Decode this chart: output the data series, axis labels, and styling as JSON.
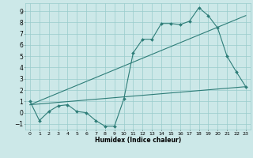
{
  "xlabel": "Humidex (Indice chaleur)",
  "xlim": [
    -0.5,
    23.5
  ],
  "ylim": [
    -1.5,
    9.7
  ],
  "yticks": [
    -1,
    0,
    1,
    2,
    3,
    4,
    5,
    6,
    7,
    8,
    9
  ],
  "xticks": [
    0,
    1,
    2,
    3,
    4,
    5,
    6,
    7,
    8,
    9,
    10,
    11,
    12,
    13,
    14,
    15,
    16,
    17,
    18,
    19,
    20,
    21,
    22,
    23
  ],
  "bg_color": "#cce8e8",
  "line_color": "#2e7d78",
  "grid_color": "#99cccc",
  "line1_x": [
    0,
    1,
    2,
    3,
    4,
    5,
    6,
    7,
    8,
    9,
    10,
    11,
    12,
    13,
    14,
    15,
    16,
    17,
    18,
    19,
    20,
    21,
    22,
    23
  ],
  "line1_y": [
    1.0,
    -0.7,
    0.1,
    0.6,
    0.7,
    0.1,
    0.0,
    -0.7,
    -1.2,
    -1.2,
    1.2,
    5.3,
    6.5,
    6.5,
    7.9,
    7.9,
    7.8,
    8.1,
    9.3,
    8.6,
    7.5,
    5.0,
    3.6,
    2.3
  ],
  "line2_x": [
    0,
    23
  ],
  "line2_y": [
    0.7,
    2.3
  ],
  "line3_x": [
    0,
    23
  ],
  "line3_y": [
    0.7,
    8.6
  ]
}
